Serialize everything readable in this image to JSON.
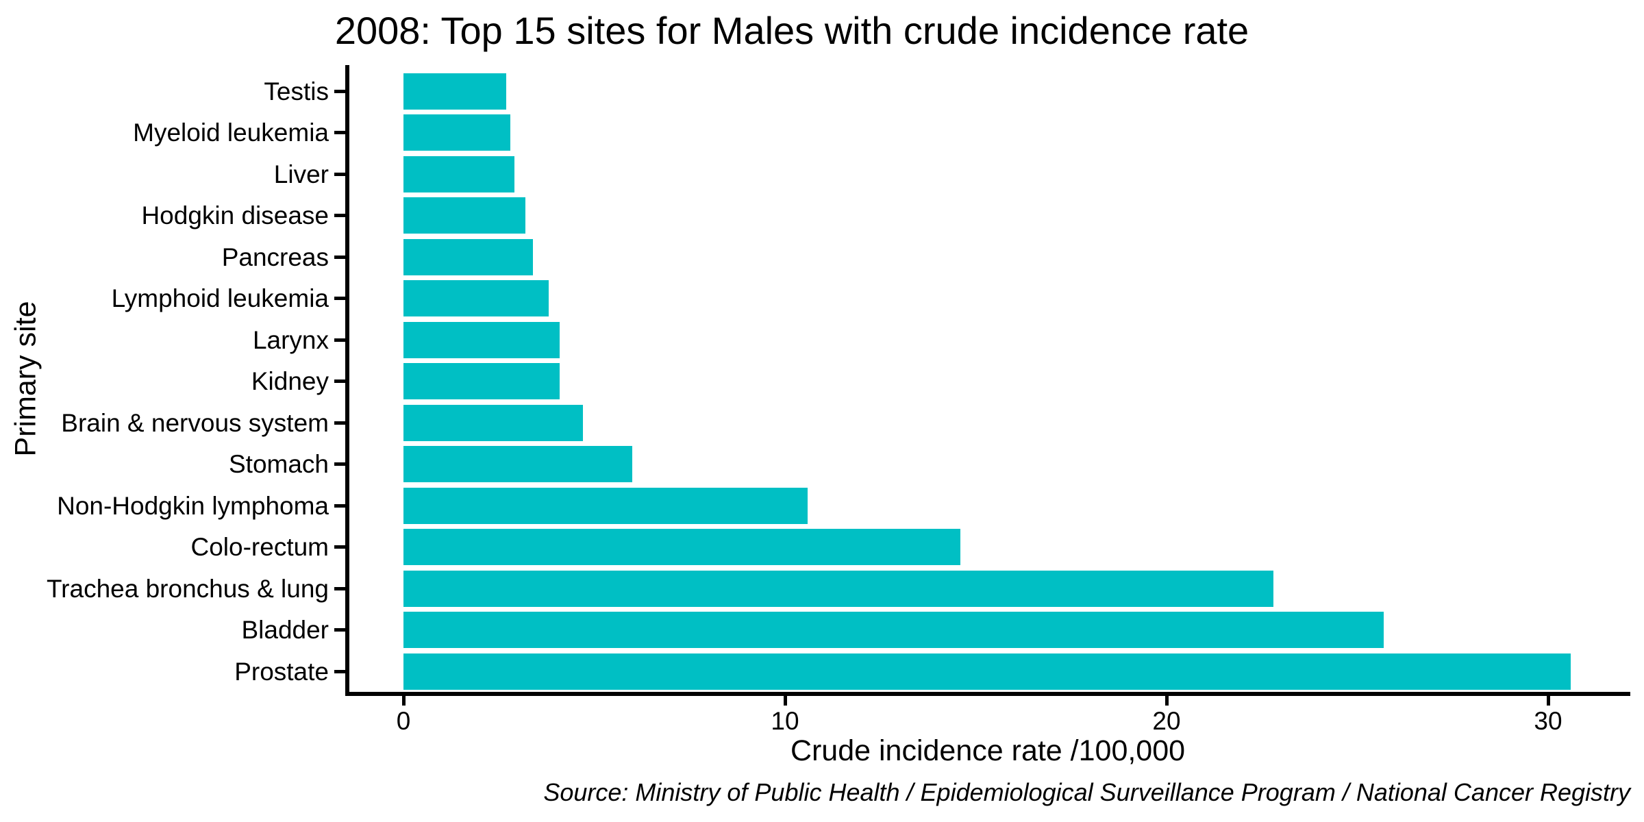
{
  "figure": {
    "title": "2008: Top 15 sites for Males with crude incidence rate",
    "caption": "Source: Ministry of Public Health / Epidemiological Surveillance Program / National Cancer Registry"
  },
  "chart_data": {
    "type": "bar",
    "orientation": "horizontal",
    "title": "2008: Top 15 sites for Males with crude incidence rate",
    "xlabel": "Crude incidence rate /100,000",
    "ylabel": "Primary site",
    "categories_top_to_bottom": [
      "Testis",
      "Myeloid leukemia",
      "Liver",
      "Hodgkin disease",
      "Pancreas",
      "Lymphoid leukemia",
      "Larynx",
      "Kidney",
      "Brain & nervous system",
      "Stomach",
      "Non-Hodgkin lymphoma",
      "Colo-rectum",
      "Trachea bronchus & lung",
      "Bladder",
      "Prostate"
    ],
    "values": [
      2.7,
      2.8,
      2.9,
      3.2,
      3.4,
      3.8,
      4.1,
      4.1,
      4.7,
      6.0,
      10.6,
      14.6,
      22.8,
      25.7,
      30.6
    ],
    "x_ticks": [
      0,
      10,
      20,
      30
    ],
    "x_tick_labels": [
      "0",
      "10",
      "20",
      "30"
    ],
    "xlim": [
      0,
      32.1
    ],
    "grid": false,
    "legend": "none",
    "bar_color": "#00BFC4",
    "axis_color": "#000000",
    "text_color": "#000000",
    "caption": "Source: Ministry of Public Health / Epidemiological Surveillance Program / National Cancer Registry"
  }
}
